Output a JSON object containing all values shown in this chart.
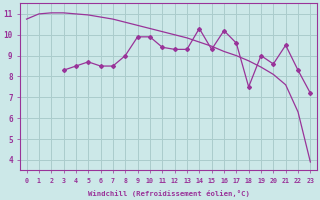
{
  "xlabel": "Windchill (Refroidissement éolien,°C)",
  "x_smooth": [
    0,
    1,
    2,
    3,
    4,
    5,
    6,
    7,
    8,
    9,
    10,
    11,
    12,
    13,
    14,
    15,
    16,
    17,
    18,
    19,
    20,
    21,
    22,
    23
  ],
  "y_smooth": [
    10.75,
    11.0,
    11.05,
    11.05,
    11.0,
    10.95,
    10.85,
    10.75,
    10.6,
    10.45,
    10.3,
    10.15,
    10.0,
    9.85,
    9.65,
    9.45,
    9.2,
    9.0,
    8.75,
    8.45,
    8.1,
    7.6,
    6.3,
    3.9
  ],
  "x_jagged": [
    3,
    4,
    5,
    6,
    7,
    8,
    9,
    10,
    11,
    12,
    13,
    14,
    15,
    16,
    17,
    18,
    19,
    20,
    21,
    22,
    23
  ],
  "y_jagged": [
    8.3,
    8.5,
    8.7,
    8.5,
    8.5,
    9.0,
    9.9,
    9.9,
    9.4,
    9.3,
    9.3,
    10.3,
    9.3,
    10.2,
    9.6,
    7.5,
    9.0,
    8.6,
    9.5,
    8.3,
    7.2
  ],
  "line_color": "#993399",
  "bg_color": "#cce8e8",
  "grid_color": "#aacccc",
  "ylim": [
    3.5,
    11.5
  ],
  "xlim": [
    -0.5,
    23.5
  ]
}
